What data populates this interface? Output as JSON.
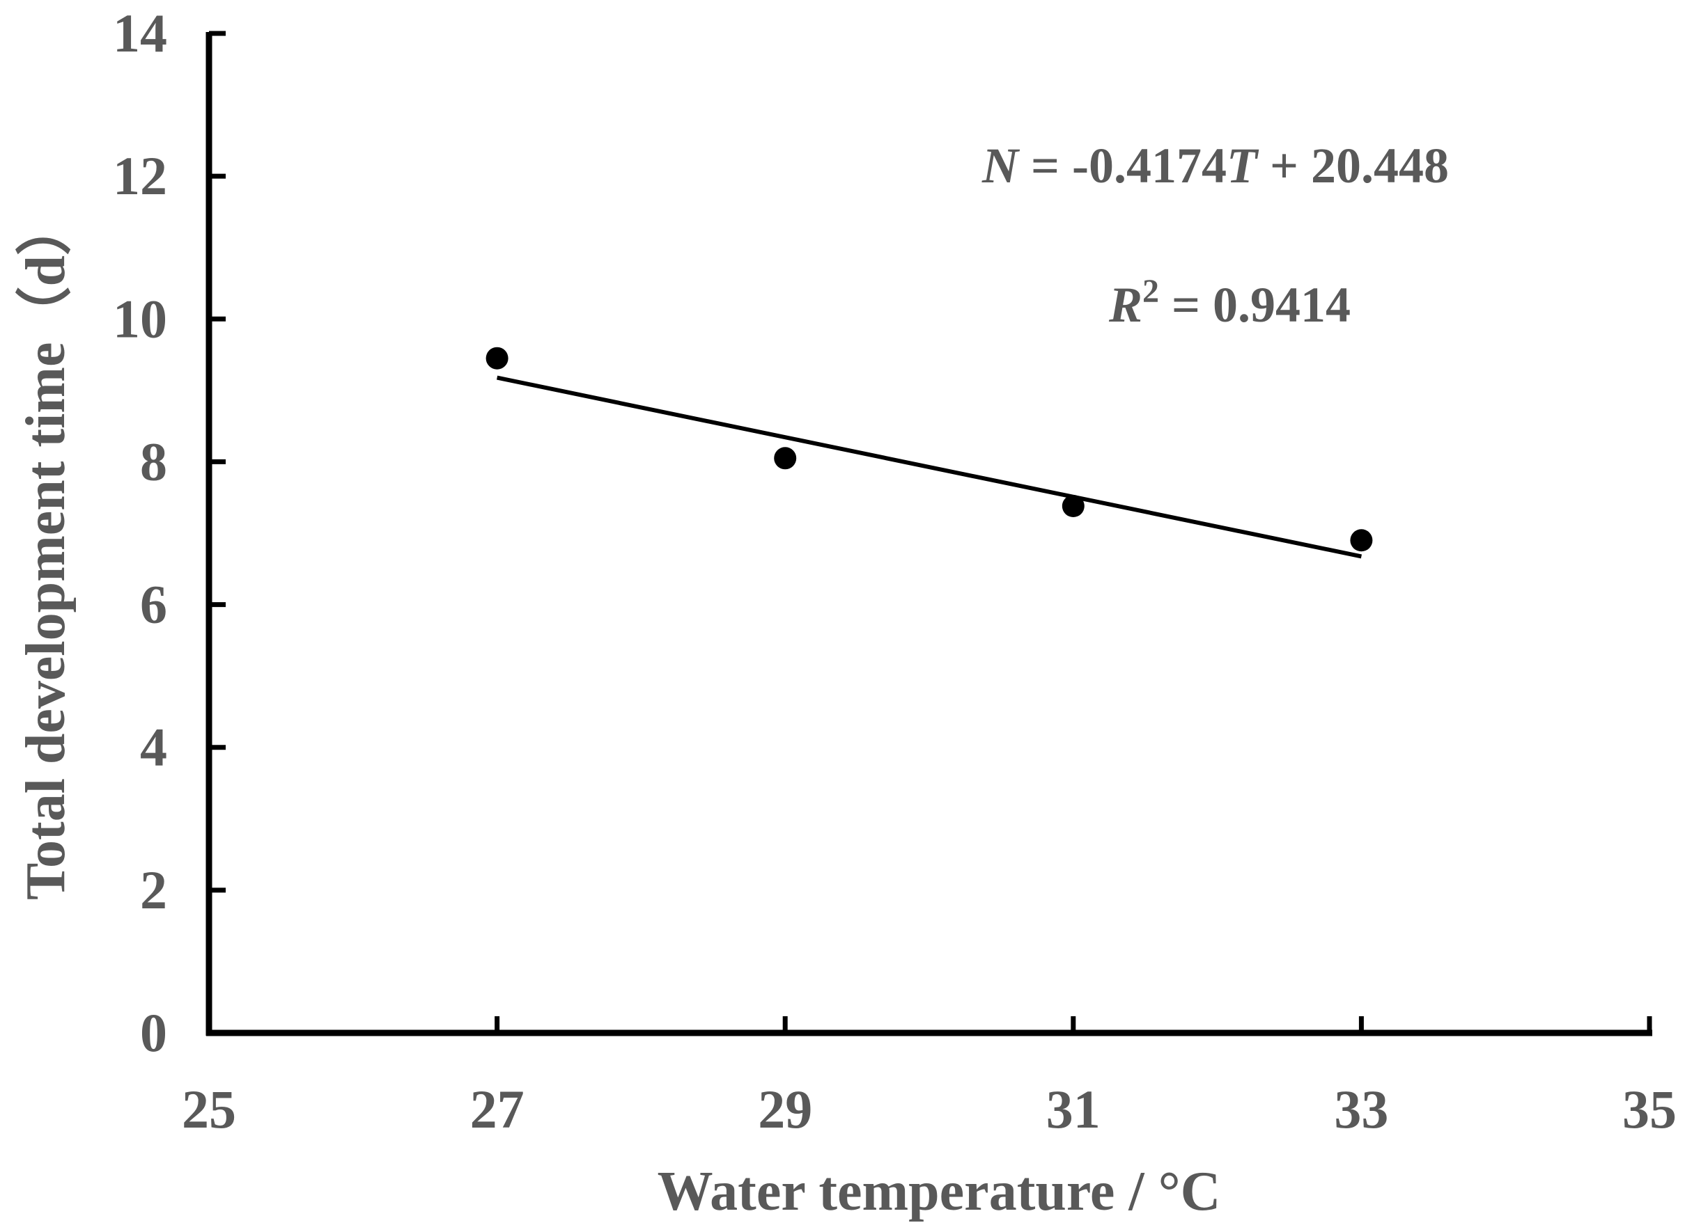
{
  "chart_data": {
    "type": "scatter",
    "xlabel": "Water temperature / °C",
    "ylabel": "Total development time（d）",
    "xlim": [
      25,
      35
    ],
    "ylim": [
      0,
      14
    ],
    "xticks": [
      25,
      27,
      29,
      31,
      33,
      35
    ],
    "yticks": [
      0,
      2,
      4,
      6,
      8,
      10,
      12,
      14
    ],
    "xtick_labels": [
      "25",
      "27",
      "29",
      "31",
      "33",
      "35"
    ],
    "ytick_labels": [
      "0",
      "2",
      "4",
      "6",
      "8",
      "10",
      "12",
      "14"
    ],
    "series": [
      {
        "x": [
          27,
          29,
          31,
          33
        ],
        "y": [
          9.45,
          8.05,
          7.38,
          6.9
        ]
      }
    ],
    "trendline": {
      "slope": -0.4174,
      "intercept": 20.448,
      "x_range": [
        27,
        33
      ]
    },
    "annotations": {
      "equation_var": "N",
      "equation_middle": " = -0.4174",
      "equation_var2": "T",
      "equation_rest": " + 20.448",
      "r2_var": "R",
      "r2_sup": "2",
      "r2_rest": " = 0.9414"
    },
    "grid": false,
    "legend": "none",
    "colors": {
      "axis": "#000000",
      "marker": "#000000",
      "text": "#595959"
    }
  }
}
